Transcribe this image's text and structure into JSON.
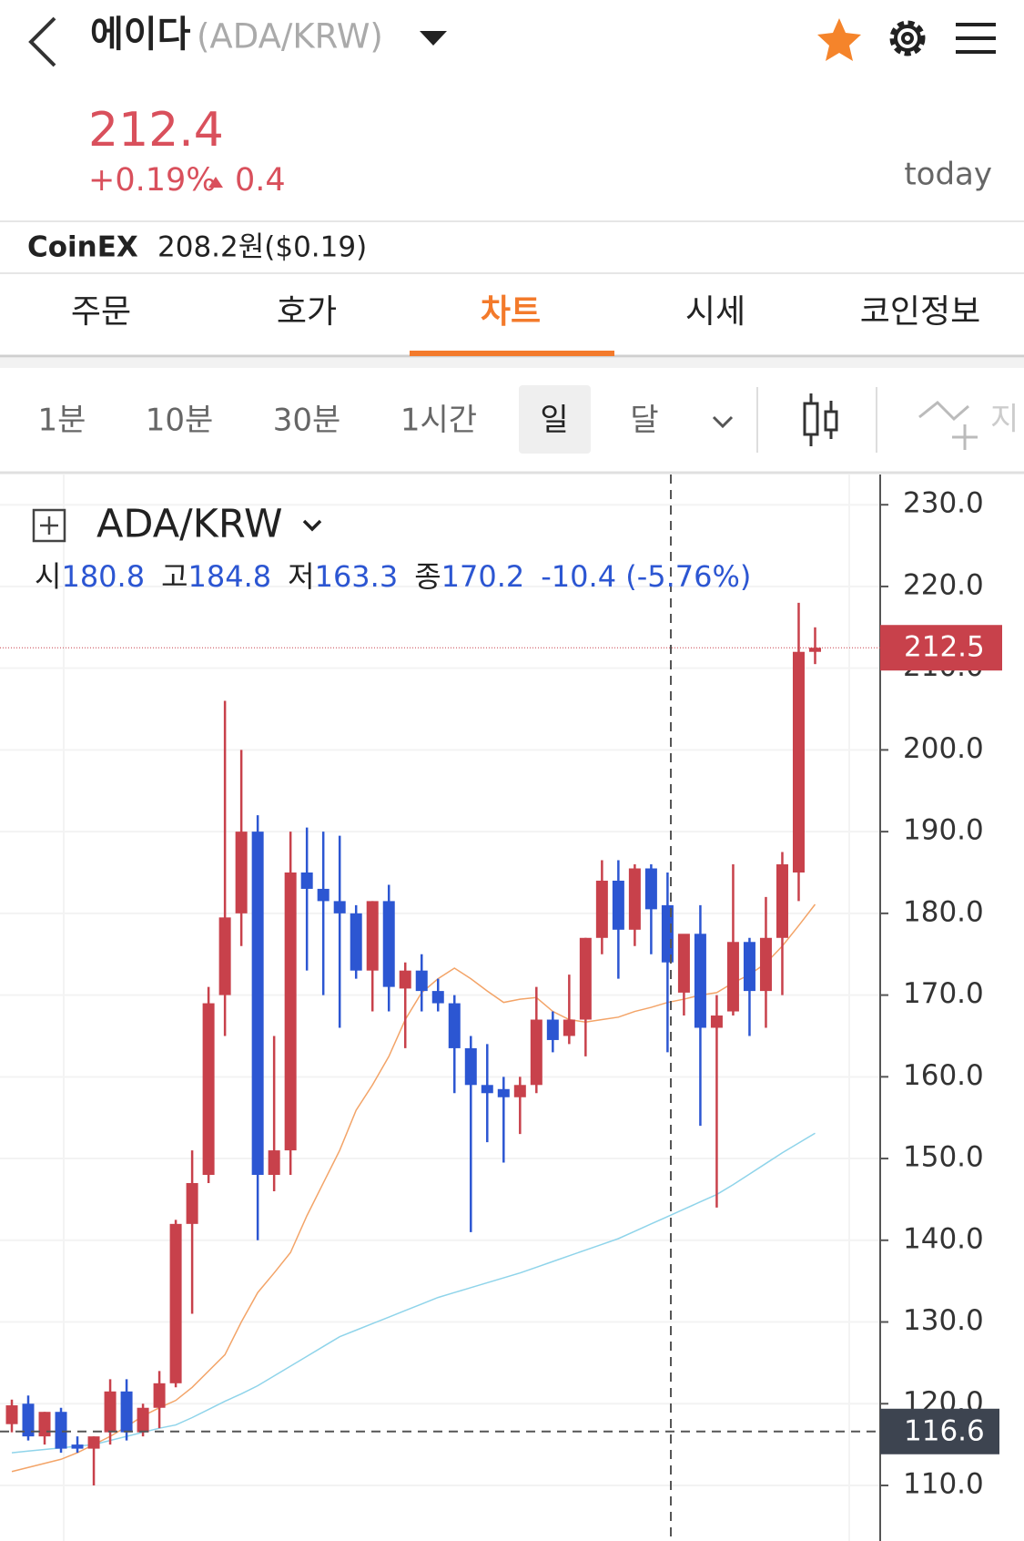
{
  "header": {
    "name": "에이다",
    "pair": "(ADA/KRW)"
  },
  "price": {
    "value": "212.4",
    "change": "+0.19%",
    "delta": "0.4",
    "period": "today"
  },
  "exchange": {
    "name": "CoinEX",
    "price": "208.2원($0.19)"
  },
  "tabs": [
    "주문",
    "호가",
    "차트",
    "시세",
    "코인정보"
  ],
  "intervals": [
    "1분",
    "10분",
    "30분",
    "1시간",
    "일",
    "달"
  ],
  "tool_label": "지",
  "chart_data": {
    "type": "candlestick",
    "title": "ADA/KRW",
    "info": [
      {
        "label": "시",
        "value": "180.8"
      },
      {
        "label": "고",
        "value": "184.8"
      },
      {
        "label": "저",
        "value": "163.3"
      },
      {
        "label": "종",
        "value": "170.2"
      }
    ],
    "change": "-10.4 (-5.76%)",
    "up_color": "#c8414b",
    "down_color": "#2c56d2",
    "candles": {
      "open": [
        117.5,
        120,
        116,
        119,
        115,
        114.5,
        116.5,
        121.5,
        116.5,
        119.5,
        122.5,
        142,
        148,
        170,
        180,
        190,
        148,
        151,
        185,
        183,
        181.5,
        180,
        173,
        181.5,
        170.8,
        173,
        170.5,
        169,
        163.5,
        159,
        158.5,
        157.5,
        159,
        167,
        165,
        167,
        177,
        184,
        178,
        185.5,
        181,
        170.3,
        177.5,
        166,
        168,
        176.5,
        170.5,
        177,
        185,
        212
      ],
      "high": [
        120.5,
        121,
        119,
        119.5,
        116,
        116,
        123,
        123,
        120,
        124,
        142.5,
        151,
        171,
        206,
        200,
        192,
        165,
        190,
        190.5,
        190,
        189.5,
        181,
        181.5,
        183.5,
        174,
        175,
        172,
        170,
        165,
        164,
        160,
        160,
        171,
        168,
        172.5,
        177,
        186.5,
        186.5,
        186,
        186,
        185,
        177,
        181,
        170,
        186,
        177,
        182,
        187.5,
        218,
        215
      ],
      "low": [
        116.5,
        115.5,
        115,
        114,
        114,
        110,
        115,
        115.5,
        116,
        117,
        122,
        131,
        147,
        165,
        176,
        140,
        146,
        148,
        173,
        170,
        166,
        172,
        168,
        168,
        163.5,
        168,
        168,
        158,
        141,
        152,
        149.5,
        153,
        158,
        163,
        164,
        162.5,
        175,
        172,
        176,
        175,
        163,
        167.5,
        154,
        144,
        167.5,
        165,
        166,
        170,
        181.5,
        210.5
      ],
      "close": [
        119.8,
        116,
        119,
        114.5,
        114.5,
        116,
        121.5,
        116.5,
        119.5,
        122.5,
        142,
        147,
        169,
        179.5,
        190,
        148,
        151,
        185,
        183,
        181.5,
        180,
        173,
        181.5,
        171,
        173,
        170.5,
        169,
        163.5,
        159,
        158,
        157.5,
        159,
        167,
        164.5,
        167,
        177,
        184,
        178,
        185.5,
        180.5,
        174,
        177.5,
        166,
        167.5,
        176.5,
        170.5,
        177,
        186,
        212,
        212.5
      ]
    },
    "moving_averages": [
      {
        "color": "#f3a468",
        "values": [
          111.7,
          112.2,
          112.7,
          113.2,
          114,
          115,
          116,
          117.2,
          118.5,
          119.5,
          120.4,
          122,
          124,
          126,
          130,
          133.6,
          136,
          138.5,
          143,
          147,
          151,
          155.9,
          159,
          162.5,
          167,
          170.3,
          172,
          173.3,
          172,
          170.5,
          169.1,
          169.5,
          169.7,
          168,
          167,
          166.7,
          167,
          167.3,
          168,
          168.5,
          169.1,
          169.5,
          170,
          170.3,
          171.5,
          172.5,
          173.9,
          176,
          178.5,
          181.1
        ]
      },
      {
        "color": "#8fd4ea",
        "values": [
          114,
          114.2,
          114.4,
          114.6,
          114.8,
          115,
          115.5,
          116,
          116.5,
          117,
          117.4,
          118.3,
          119.3,
          120.3,
          121.2,
          122.2,
          123.4,
          124.6,
          125.8,
          127,
          128.2,
          129,
          129.8,
          130.6,
          131.4,
          132.2,
          133,
          133.6,
          134.2,
          134.8,
          135.4,
          136,
          136.7,
          137.4,
          138.1,
          138.8,
          139.5,
          140.2,
          141.1,
          142,
          142.9,
          143.8,
          144.7,
          145.6,
          146.8,
          148.1,
          149.4,
          150.7,
          151.9,
          153.1
        ]
      }
    ],
    "ylim": [
      103.2,
      233.7
    ],
    "yticks": [
      {
        "value": 110,
        "label": "110.0"
      },
      {
        "value": 120,
        "label": "120.0"
      },
      {
        "value": 130,
        "label": "130.0"
      },
      {
        "value": 140,
        "label": "140.0"
      },
      {
        "value": 150,
        "label": "150.0"
      },
      {
        "value": 160,
        "label": "160.0"
      },
      {
        "value": 170,
        "label": "170.0"
      },
      {
        "value": 180,
        "label": "180.0"
      },
      {
        "value": 190,
        "label": "190.0"
      },
      {
        "value": 200,
        "label": "200.0"
      },
      {
        "value": 210,
        "label": "210.0"
      },
      {
        "value": 220,
        "label": "220.0"
      },
      {
        "value": 230,
        "label": "230.0"
      }
    ],
    "last_price": 212.5,
    "crosshair": 116.6
  }
}
